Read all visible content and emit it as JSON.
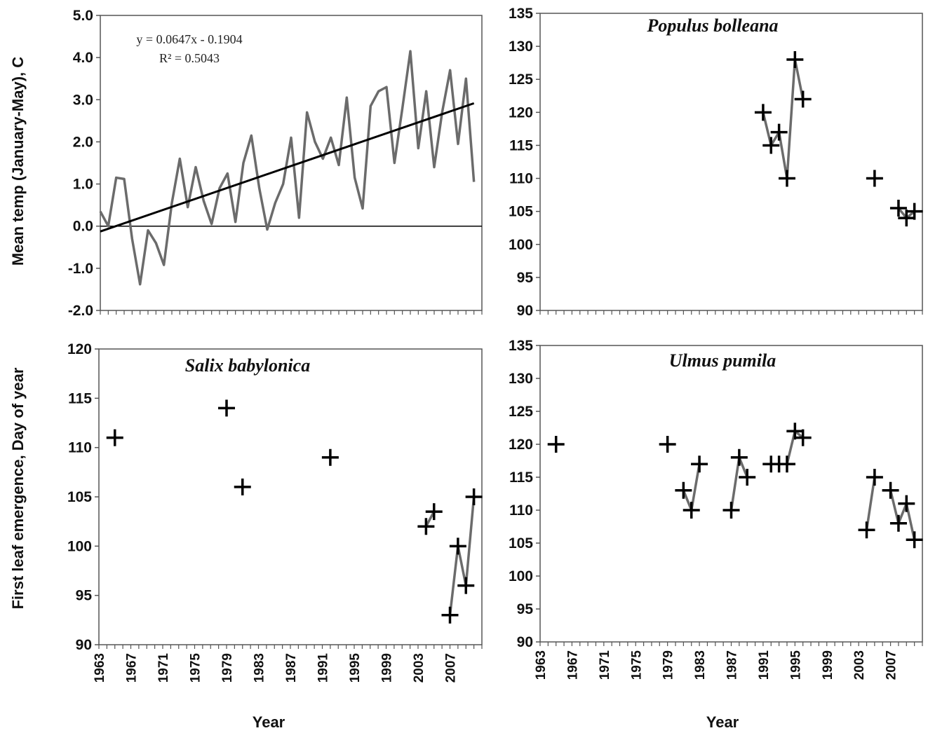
{
  "figure": {
    "ylabel_temp": "Mean temp (January-May), C",
    "ylabel_leaf": "First leaf emergence, Day of year",
    "xlabel": "Year"
  },
  "chart_data": [
    {
      "id": "temp",
      "type": "line",
      "title": "",
      "xlabel": "",
      "ylabel": "Mean temp (January-May), C",
      "xlim": [
        1963,
        2011
      ],
      "ylim": [
        -2.0,
        5.0
      ],
      "yticks": [
        "-2.0",
        "-1.0",
        "0.0",
        "1.0",
        "2.0",
        "3.0",
        "4.0",
        "5.0"
      ],
      "zero_line": true,
      "grid": false,
      "series": [
        {
          "color": "#6b6b6b",
          "x": [
            1963,
            1964,
            1965,
            1966,
            1967,
            1968,
            1969,
            1970,
            1971,
            1972,
            1973,
            1974,
            1975,
            1976,
            1977,
            1978,
            1979,
            1980,
            1981,
            1982,
            1983,
            1984,
            1985,
            1986,
            1987,
            1988,
            1989,
            1990,
            1991,
            1992,
            1993,
            1994,
            1995,
            1996,
            1997,
            1998,
            1999,
            2000,
            2001,
            2002,
            2003,
            2004,
            2005,
            2006,
            2007,
            2008,
            2009,
            2010
          ],
          "values": [
            0.35,
            0.0,
            1.15,
            1.12,
            -0.3,
            -1.38,
            -0.1,
            -0.4,
            -0.92,
            0.55,
            1.6,
            0.45,
            1.4,
            0.6,
            0.05,
            0.9,
            1.25,
            0.1,
            1.5,
            2.15,
            0.9,
            -0.08,
            0.55,
            1.0,
            2.1,
            0.2,
            2.7,
            2.0,
            1.6,
            2.1,
            1.45,
            3.05,
            1.15,
            0.42,
            2.85,
            3.2,
            3.3,
            1.5,
            2.8,
            4.15,
            1.85,
            3.2,
            1.4,
            2.7,
            3.7,
            1.95,
            3.5,
            1.05
          ]
        }
      ],
      "trendline": {
        "color": "#000000",
        "equation": "y = 0.0647x - 0.1904",
        "r_squared": "R² = 0.5043",
        "slope": 0.0647,
        "intercept": -0.1904,
        "x_start": 1963,
        "x_end": 2010
      }
    },
    {
      "id": "populus",
      "type": "scatter",
      "title": "Populus bolleana",
      "xlim": [
        1963,
        2011
      ],
      "ylim": [
        90,
        135
      ],
      "yticks": [
        "90",
        "95",
        "100",
        "105",
        "110",
        "115",
        "120",
        "125",
        "130",
        "135"
      ],
      "xticks": [],
      "marker": "plus",
      "line_color": "#6b6b6b",
      "points": [
        {
          "x": 1991,
          "y": 120
        },
        {
          "x": 1992,
          "y": 115
        },
        {
          "x": 1993,
          "y": 117
        },
        {
          "x": 1994,
          "y": 110
        },
        {
          "x": 1995,
          "y": 128
        },
        {
          "x": 1996,
          "y": 122
        },
        {
          "x": 2005,
          "y": 110
        },
        {
          "x": 2008,
          "y": 105.5
        },
        {
          "x": 2009,
          "y": 104
        },
        {
          "x": 2010,
          "y": 105
        }
      ],
      "segments": [
        [
          0,
          1,
          2,
          3,
          4,
          5
        ],
        [
          7,
          8,
          9
        ]
      ]
    },
    {
      "id": "salix",
      "type": "scatter",
      "title": "Salix babylonica",
      "xlabel": "Year",
      "ylabel": "First leaf emergence, Day of year",
      "xlim": [
        1963,
        2011
      ],
      "ylim": [
        90,
        120
      ],
      "yticks": [
        "90",
        "95",
        "100",
        "105",
        "110",
        "115",
        "120"
      ],
      "xticks": [
        "1963",
        "1967",
        "1971",
        "1975",
        "1979",
        "1983",
        "1987",
        "1991",
        "1995",
        "1999",
        "2003",
        "2007"
      ],
      "marker": "plus",
      "line_color": "#6b6b6b",
      "points": [
        {
          "x": 1965,
          "y": 111
        },
        {
          "x": 1979,
          "y": 114
        },
        {
          "x": 1981,
          "y": 106
        },
        {
          "x": 1992,
          "y": 109
        },
        {
          "x": 2004,
          "y": 102
        },
        {
          "x": 2005,
          "y": 103.5
        },
        {
          "x": 2007,
          "y": 93
        },
        {
          "x": 2008,
          "y": 100
        },
        {
          "x": 2009,
          "y": 96
        },
        {
          "x": 2010,
          "y": 105
        }
      ],
      "segments": [
        [
          4,
          5
        ],
        [
          6,
          7,
          8,
          9
        ]
      ]
    },
    {
      "id": "ulmus",
      "type": "scatter",
      "title": "Ulmus pumila",
      "xlabel": "Year",
      "xlim": [
        1963,
        2011
      ],
      "ylim": [
        90,
        135
      ],
      "yticks": [
        "90",
        "95",
        "100",
        "105",
        "110",
        "115",
        "120",
        "125",
        "130",
        "135"
      ],
      "xticks": [
        "1963",
        "1967",
        "1971",
        "1975",
        "1979",
        "1983",
        "1987",
        "1991",
        "1995",
        "1999",
        "2003",
        "2007"
      ],
      "marker": "plus",
      "line_color": "#6b6b6b",
      "points": [
        {
          "x": 1965,
          "y": 120
        },
        {
          "x": 1979,
          "y": 120
        },
        {
          "x": 1981,
          "y": 113
        },
        {
          "x": 1982,
          "y": 110
        },
        {
          "x": 1983,
          "y": 117
        },
        {
          "x": 1987,
          "y": 110
        },
        {
          "x": 1988,
          "y": 118
        },
        {
          "x": 1989,
          "y": 115
        },
        {
          "x": 1992,
          "y": 117
        },
        {
          "x": 1993,
          "y": 117
        },
        {
          "x": 1994,
          "y": 117
        },
        {
          "x": 1995,
          "y": 122
        },
        {
          "x": 1996,
          "y": 121
        },
        {
          "x": 2004,
          "y": 107
        },
        {
          "x": 2005,
          "y": 115
        },
        {
          "x": 2007,
          "y": 113
        },
        {
          "x": 2008,
          "y": 108
        },
        {
          "x": 2009,
          "y": 111
        },
        {
          "x": 2010,
          "y": 105.5
        }
      ],
      "segments": [
        [
          2,
          3,
          4
        ],
        [
          5,
          6,
          7
        ],
        [
          8,
          9,
          10,
          11,
          12
        ],
        [
          13,
          14
        ],
        [
          15,
          16,
          17,
          18
        ]
      ]
    }
  ]
}
